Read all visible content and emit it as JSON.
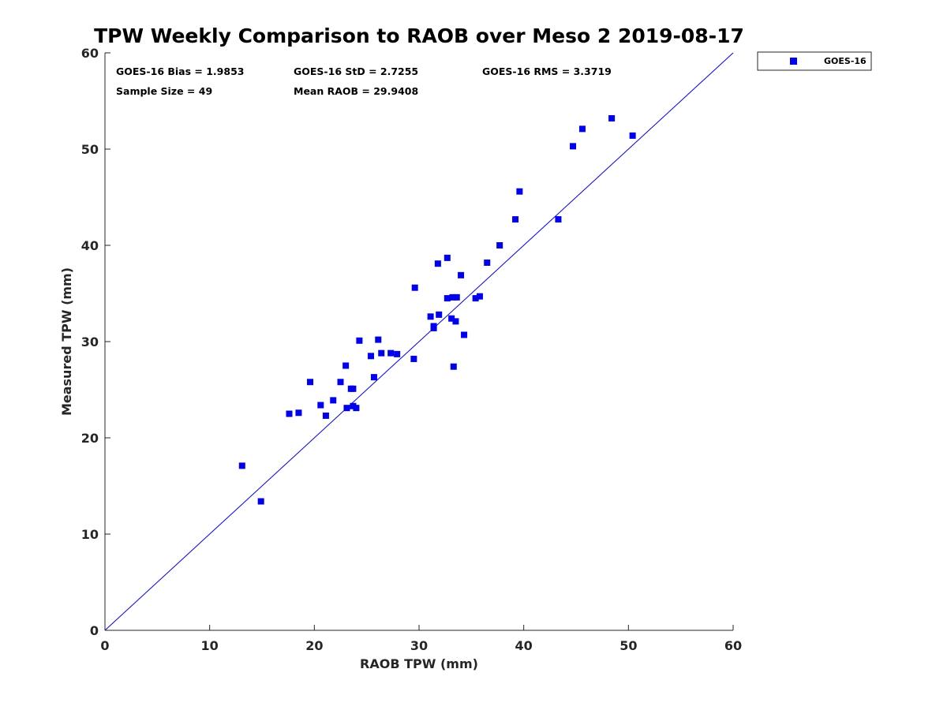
{
  "chart_data": {
    "type": "scatter",
    "title": "TPW Weekly Comparison to RAOB over Meso 2 2019-08-17",
    "xlabel": "RAOB TPW (mm)",
    "ylabel": "Measured TPW (mm)",
    "xlim": [
      0,
      60
    ],
    "ylim": [
      0,
      60
    ],
    "xticks": [
      0,
      10,
      20,
      30,
      40,
      50,
      60
    ],
    "yticks": [
      0,
      10,
      20,
      30,
      40,
      50,
      60
    ],
    "xtick_labels": [
      "0",
      "10",
      "20",
      "30",
      "40",
      "50",
      "60"
    ],
    "ytick_labels": [
      "0",
      "10",
      "20",
      "30",
      "40",
      "50",
      "60"
    ],
    "grid": false,
    "legend_position": "outside-top-right",
    "stats": {
      "bias": "GOES-16 Bias = 1.9853",
      "std": "GOES-16 StD = 2.7255",
      "rms": "GOES-16 RMS = 3.3719",
      "sample_size": "Sample Size = 49",
      "mean_raob": "Mean RAOB = 29.9408"
    },
    "reference_line": {
      "name": "1:1 line",
      "x": [
        0,
        60
      ],
      "y": [
        0,
        60
      ],
      "color": "#0000ff"
    },
    "series": [
      {
        "name": "GOES-16",
        "marker": "square",
        "color": "#0000ee",
        "x": [
          13.1,
          14.9,
          17.6,
          18.5,
          19.6,
          20.6,
          21.1,
          21.8,
          22.5,
          23.0,
          23.1,
          23.5,
          23.7,
          23.7,
          24.0,
          24.3,
          25.4,
          25.7,
          26.1,
          26.4,
          27.3,
          27.9,
          29.5,
          29.6,
          31.1,
          31.4,
          31.4,
          31.8,
          31.9,
          32.7,
          32.7,
          33.1,
          33.2,
          33.3,
          33.5,
          33.6,
          34.0,
          34.3,
          35.4,
          35.8,
          36.5,
          37.7,
          39.2,
          39.6,
          43.3,
          44.7,
          45.6,
          48.4,
          50.4
        ],
        "y": [
          17.1,
          13.4,
          22.5,
          22.6,
          25.8,
          23.4,
          22.3,
          23.9,
          25.8,
          27.5,
          23.1,
          25.1,
          25.1,
          23.3,
          23.1,
          30.1,
          28.5,
          26.3,
          30.2,
          28.8,
          28.8,
          28.7,
          28.2,
          35.6,
          32.6,
          31.6,
          31.4,
          38.1,
          32.8,
          34.5,
          38.7,
          32.4,
          34.6,
          27.4,
          32.1,
          34.6,
          36.9,
          30.7,
          34.5,
          34.7,
          38.2,
          40.0,
          42.7,
          45.6,
          42.7,
          50.3,
          52.1,
          53.2,
          51.4
        ]
      }
    ]
  }
}
